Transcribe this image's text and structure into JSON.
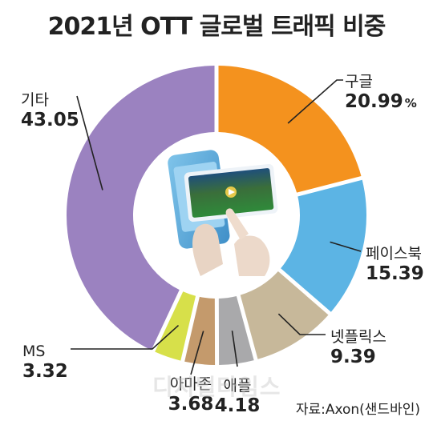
{
  "chart_data": {
    "type": "donut",
    "title": "2021년 OTT 글로벌 트래픽 비중",
    "unit": "%",
    "series": [
      {
        "name": "구글",
        "value": 20.99,
        "value_label": "20.99",
        "color": "#f4921e"
      },
      {
        "name": "페이스북",
        "value": 15.39,
        "value_label": "15.39",
        "color": "#5cb4e4"
      },
      {
        "name": "넷플릭스",
        "value": 9.39,
        "value_label": "9.39",
        "color": "#c7b89a"
      },
      {
        "name": "애플",
        "value": 4.18,
        "value_label": "4.18",
        "color": "#a9a9ab"
      },
      {
        "name": "아마존",
        "value": 3.68,
        "value_label": "3.68",
        "color": "#c49a6c"
      },
      {
        "name": "MS",
        "value": 3.32,
        "value_label": "3.32",
        "color": "#d7e04a"
      },
      {
        "name": "기타",
        "value": 43.05,
        "value_label": "43.05",
        "color": "#9b82c0"
      }
    ]
  },
  "source": "자료:Axon(샌드바인)",
  "watermark": "디지털타임스"
}
